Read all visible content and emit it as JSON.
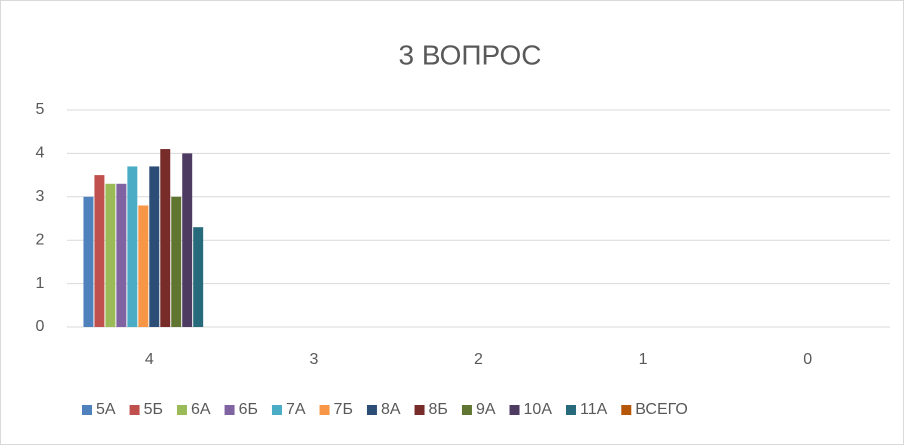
{
  "chart_data": {
    "type": "bar",
    "title": "3 ВОПРОС",
    "categories": [
      "4",
      "3",
      "2",
      "1",
      "0"
    ],
    "series": [
      {
        "name": "5А",
        "color": "#4F81BD",
        "values": [
          3.0,
          null,
          null,
          null,
          null
        ]
      },
      {
        "name": "5Б",
        "color": "#C0504D",
        "values": [
          3.5,
          null,
          null,
          null,
          null
        ]
      },
      {
        "name": "6А",
        "color": "#9BBB59",
        "values": [
          3.3,
          null,
          null,
          null,
          null
        ]
      },
      {
        "name": "6Б",
        "color": "#8064A2",
        "values": [
          3.3,
          null,
          null,
          null,
          null
        ]
      },
      {
        "name": "7А",
        "color": "#4BACC6",
        "values": [
          3.7,
          null,
          null,
          null,
          null
        ]
      },
      {
        "name": "7Б",
        "color": "#F79646",
        "values": [
          2.8,
          null,
          null,
          null,
          null
        ]
      },
      {
        "name": "8А",
        "color": "#2C4D75",
        "values": [
          3.7,
          null,
          null,
          null,
          null
        ]
      },
      {
        "name": "8Б",
        "color": "#772C2A",
        "values": [
          4.1,
          null,
          null,
          null,
          null
        ]
      },
      {
        "name": "9А",
        "color": "#5F7530",
        "values": [
          3.0,
          null,
          null,
          null,
          null
        ]
      },
      {
        "name": "10А",
        "color": "#4D3B62",
        "values": [
          4.0,
          null,
          null,
          null,
          null
        ]
      },
      {
        "name": "11А",
        "color": "#276A7C",
        "values": [
          2.3,
          null,
          null,
          null,
          null
        ]
      },
      {
        "name": "ВСЕГО",
        "color": "#B65708",
        "values": [
          null,
          null,
          null,
          null,
          null
        ]
      }
    ],
    "ylim": [
      0,
      5
    ],
    "yticks": [
      0,
      1,
      2,
      3,
      4,
      5
    ],
    "grid": true,
    "legend": "bottom"
  }
}
